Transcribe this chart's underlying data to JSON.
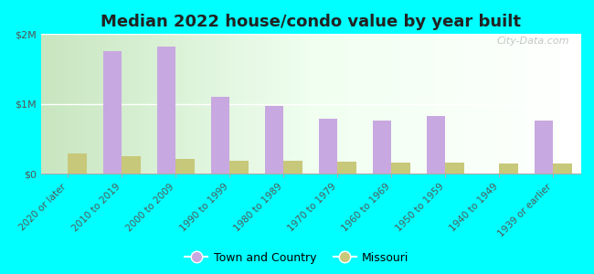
{
  "title": "Median 2022 house/condo value by year built",
  "categories": [
    "2020 or later",
    "2010 to 2019",
    "2000 to 2009",
    "1990 to 1999",
    "1980 to 1989",
    "1970 to 1979",
    "1960 to 1969",
    "1950 to 1959",
    "1940 to 1949",
    "1939 or earlier"
  ],
  "town_values": [
    0,
    1750000,
    1820000,
    1100000,
    970000,
    780000,
    760000,
    820000,
    0,
    760000
  ],
  "missouri_values": [
    290000,
    250000,
    215000,
    185000,
    185000,
    165000,
    160000,
    155000,
    145000,
    150000
  ],
  "town_color": "#c8a8e0",
  "missouri_color": "#c8c87a",
  "background_color": "#00ffff",
  "ylim": [
    0,
    2000000
  ],
  "yticks": [
    0,
    1000000,
    2000000
  ],
  "ytick_labels": [
    "$0",
    "$1M",
    "$2M"
  ],
  "legend_town": "Town and Country",
  "legend_missouri": "Missouri",
  "watermark": "City-Data.com",
  "bar_width": 0.35,
  "title_fontsize": 13,
  "tick_fontsize": 7.5,
  "legend_fontsize": 9
}
